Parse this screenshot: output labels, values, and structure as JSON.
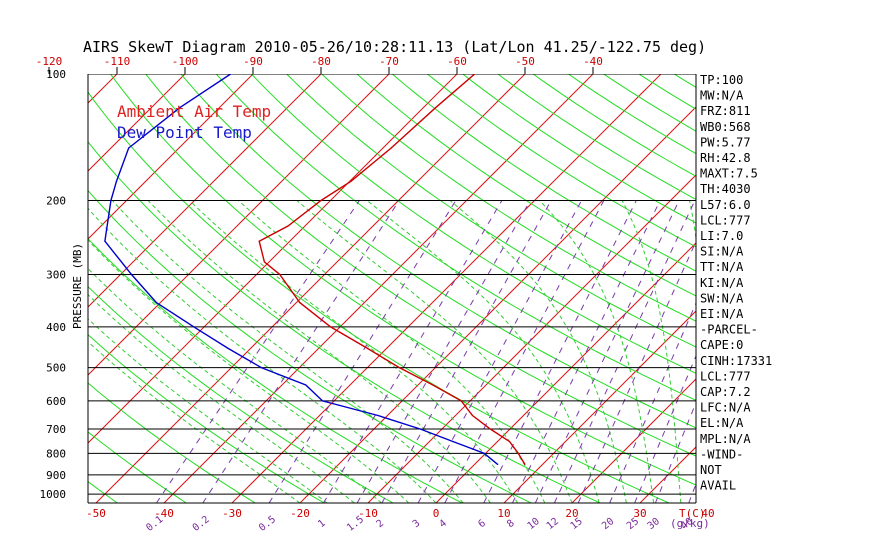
{
  "chart_data": {
    "type": "line",
    "title": "AIRS SkewT Diagram 2010-05-26/10:28:11.13 (Lat/Lon 41.25/-122.75 deg)",
    "ylabel": "PRESSURE (MB)",
    "xlabel": "T(C)",
    "mixing_label": "(g/kg)",
    "y_scale": "log",
    "ylim": [
      1050,
      100
    ],
    "pressure_ticks": [
      100,
      200,
      300,
      400,
      500,
      600,
      700,
      800,
      900,
      1000
    ],
    "pressure_tick_labels": [
      "100",
      "200",
      "300",
      "400",
      "500",
      "600",
      "700",
      "800",
      "900",
      "1000"
    ],
    "bottom_temp_ticks": [
      -50,
      -40,
      -30,
      -20,
      -10,
      0,
      10,
      20,
      30,
      40
    ],
    "bottom_temp_labels": [
      "-50",
      "-40",
      "-30",
      "-20",
      "-10",
      "0",
      "10",
      "20",
      "30",
      "40"
    ],
    "top_temp_ticks": [
      -120,
      -110,
      -100,
      -90,
      -80,
      -70,
      -60,
      -50,
      -40
    ],
    "top_temp_labels": [
      "-120",
      "-110",
      "-100",
      "-90",
      "-80",
      "-70",
      "-60",
      "-50",
      "-40"
    ],
    "mixing_ratio_labels": [
      "0.1",
      "0.2",
      "0.5",
      "1",
      "1.5",
      "2",
      "3",
      "4",
      "6",
      "8",
      "10",
      "12",
      "15",
      "20",
      "25",
      "30",
      "40"
    ],
    "legend": {
      "placement": "top-left",
      "entries": [
        {
          "label": "Ambient Air Temp",
          "color": "#dd2222"
        },
        {
          "label": "Dew Point Temp",
          "color": "#1a1acc"
        }
      ]
    },
    "series": [
      {
        "name": "Ambient Air Temp",
        "color": "#cc0000",
        "points": [
          {
            "p": 100,
            "t": -57.4
          },
          {
            "p": 120,
            "t": -58.2
          },
          {
            "p": 150,
            "t": -58.8
          },
          {
            "p": 180,
            "t": -59.8
          },
          {
            "p": 200,
            "t": -61.4
          },
          {
            "p": 230,
            "t": -62.5
          },
          {
            "p": 250,
            "t": -64.5
          },
          {
            "p": 280,
            "t": -60.7
          },
          {
            "p": 300,
            "t": -56.6
          },
          {
            "p": 350,
            "t": -49.5
          },
          {
            "p": 400,
            "t": -41.4
          },
          {
            "p": 450,
            "t": -32.8
          },
          {
            "p": 500,
            "t": -25.3
          },
          {
            "p": 550,
            "t": -17.8
          },
          {
            "p": 600,
            "t": -11.3
          },
          {
            "p": 650,
            "t": -7.5
          },
          {
            "p": 700,
            "t": -2.9
          },
          {
            "p": 750,
            "t": 1.8
          },
          {
            "p": 800,
            "t": 4.8
          },
          {
            "p": 850,
            "t": 7.4
          }
        ]
      },
      {
        "name": "Dew Point Temp",
        "color": "#0000cc",
        "points": [
          {
            "p": 100,
            "t": -93.3
          },
          {
            "p": 120,
            "t": -95.8
          },
          {
            "p": 150,
            "t": -97.4
          },
          {
            "p": 180,
            "t": -94.3
          },
          {
            "p": 200,
            "t": -92.3
          },
          {
            "p": 250,
            "t": -87.2
          },
          {
            "p": 300,
            "t": -78.4
          },
          {
            "p": 350,
            "t": -70.6
          },
          {
            "p": 400,
            "t": -61.5
          },
          {
            "p": 450,
            "t": -53.3
          },
          {
            "p": 500,
            "t": -45.6
          },
          {
            "p": 550,
            "t": -36.5
          },
          {
            "p": 600,
            "t": -31.7
          },
          {
            "p": 650,
            "t": -21.4
          },
          {
            "p": 700,
            "t": -13.2
          },
          {
            "p": 750,
            "t": -6.5
          },
          {
            "p": 800,
            "t": -0.2
          },
          {
            "p": 850,
            "t": 3.4
          }
        ]
      }
    ]
  },
  "indices": [
    "TP:100",
    "MW:N/A",
    "FRZ:811",
    "WB0:568",
    "PW:5.77",
    "RH:42.8",
    "MAXT:7.5",
    "TH:4030",
    "L57:6.0",
    "LCL:777",
    "LI:7.0",
    "SI:N/A",
    "TT:N/A",
    "KI:N/A",
    "SW:N/A",
    "EI:N/A",
    "-PARCEL-",
    "CAPE:0",
    "CINH:17331",
    "LCL:777",
    "CAP:7.2",
    "LFC:N/A",
    "EL:N/A",
    "MPL:N/A",
    "-WIND-",
    "NOT",
    "AVAIL"
  ]
}
